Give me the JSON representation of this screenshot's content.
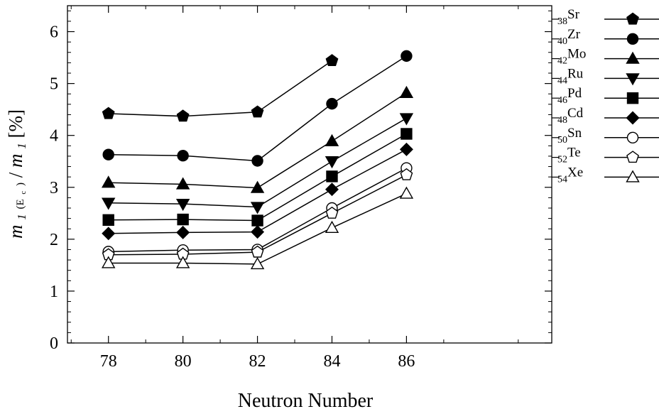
{
  "chart_data": {
    "type": "line",
    "xlabel": "Neutron Number",
    "ylabel": {
      "m1": "m",
      "sub_1": "1",
      "paren_open": "(E",
      "paren_sub": "c",
      "paren_close": ")",
      "slash": " / ",
      "m2": "m",
      "sub_2": "1",
      "unit": " [%]"
    },
    "xlim": [
      76.9,
      89.9
    ],
    "ylim": [
      0,
      6.5
    ],
    "x_ticks": [
      78,
      80,
      82,
      84,
      86
    ],
    "y_ticks": [
      0,
      1,
      2,
      3,
      4,
      5,
      6
    ],
    "grid": false,
    "legend_position": "right",
    "series": [
      {
        "name": "Sr",
        "z": "38",
        "marker": "pentagon",
        "filled": true,
        "x": [
          78,
          80,
          82,
          84
        ],
        "values": [
          4.42,
          4.37,
          4.45,
          5.44
        ]
      },
      {
        "name": "Zr",
        "z": "40",
        "marker": "circle",
        "filled": true,
        "x": [
          78,
          80,
          82,
          84,
          86
        ],
        "values": [
          3.63,
          3.61,
          3.51,
          4.61,
          5.53
        ]
      },
      {
        "name": "Mo",
        "z": "42",
        "marker": "triangle-up",
        "filled": true,
        "x": [
          78,
          80,
          82,
          84,
          86
        ],
        "values": [
          3.09,
          3.06,
          2.99,
          3.89,
          4.82
        ]
      },
      {
        "name": "Ru",
        "z": "44",
        "marker": "triangle-down",
        "filled": true,
        "x": [
          78,
          80,
          82,
          84,
          86
        ],
        "values": [
          2.7,
          2.68,
          2.62,
          3.5,
          4.33
        ]
      },
      {
        "name": "Pd",
        "z": "46",
        "marker": "square",
        "filled": true,
        "x": [
          78,
          80,
          82,
          84,
          86
        ],
        "values": [
          2.37,
          2.38,
          2.36,
          3.21,
          4.03
        ]
      },
      {
        "name": "Cd",
        "z": "48",
        "marker": "diamond",
        "filled": true,
        "x": [
          78,
          80,
          82,
          84,
          86
        ],
        "values": [
          2.11,
          2.13,
          2.14,
          2.96,
          3.73
        ]
      },
      {
        "name": "Sn",
        "z": "50",
        "marker": "circle",
        "filled": false,
        "x": [
          78,
          80,
          82,
          84,
          86
        ],
        "values": [
          1.76,
          1.79,
          1.8,
          2.6,
          3.37
        ]
      },
      {
        "name": "Te",
        "z": "52",
        "marker": "pentagon",
        "filled": false,
        "x": [
          78,
          80,
          82,
          84,
          86
        ],
        "values": [
          1.7,
          1.71,
          1.75,
          2.5,
          3.24
        ]
      },
      {
        "name": "Xe",
        "z": "54",
        "marker": "triangle-up",
        "filled": false,
        "x": [
          78,
          80,
          82,
          84,
          86
        ],
        "values": [
          1.54,
          1.54,
          1.52,
          2.22,
          2.88
        ]
      }
    ]
  }
}
